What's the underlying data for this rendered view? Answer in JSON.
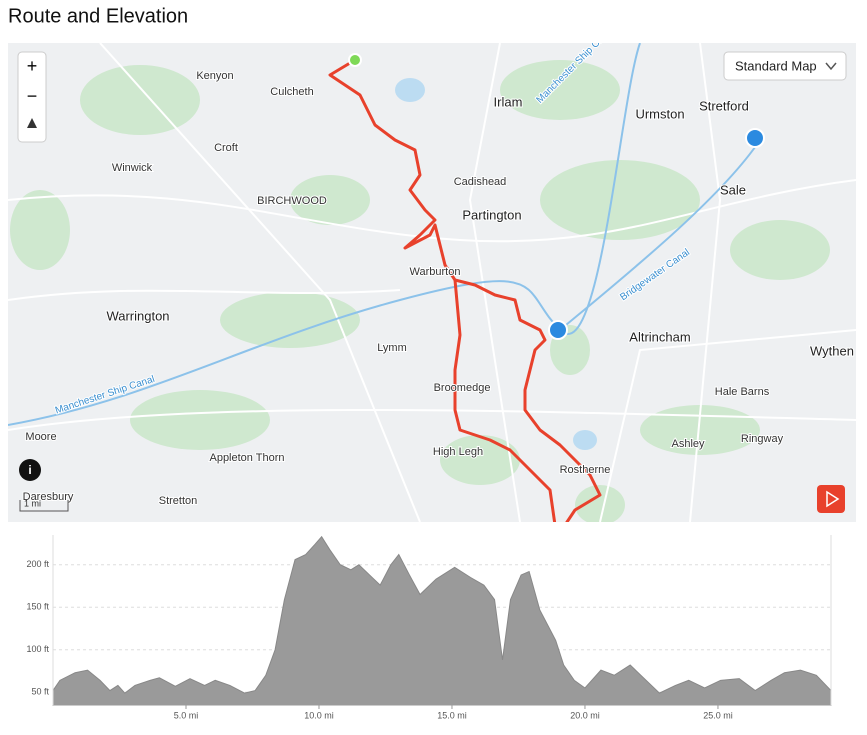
{
  "header": {
    "title": "Route and Elevation"
  },
  "map": {
    "zoom_in": "+",
    "zoom_out": "−",
    "map_style": "Standard Map",
    "scale": "1 mi",
    "labels": [
      "Kenyon",
      "Culcheth",
      "Irlam",
      "Urmston",
      "Stretford",
      "Winwick",
      "Croft",
      "Cadishead",
      "Sale",
      "BIRCHWOOD",
      "Partington",
      "Warburton",
      "Warrington",
      "Altrincham",
      "Lymm",
      "Broomedge",
      "Hale Barns",
      "Moore",
      "Ashley",
      "Ringway",
      "High Legh",
      "Rostherne",
      "Appleton Thorn",
      "Stretton",
      "Daresbury",
      "Wythen"
    ],
    "waterways": [
      "Manchester Ship Canal",
      "Manchester Ship Canal",
      "Bridgewater Canal"
    ]
  },
  "chart_data": {
    "type": "area",
    "color": "#9a9a9a",
    "x": [
      0,
      0.26,
      0.83,
      1.3,
      1.77,
      2.14,
      2.44,
      2.7,
      3.08,
      3.65,
      4.0,
      4.6,
      5.15,
      5.7,
      6.1,
      6.65,
      7.2,
      7.6,
      8.0,
      8.35,
      8.7,
      9.1,
      9.5,
      9.85,
      10.1,
      10.4,
      10.8,
      11.2,
      11.5,
      11.9,
      12.3,
      12.7,
      13.0,
      13.4,
      13.8,
      14.4,
      15.1,
      15.7,
      16.2,
      16.6,
      16.9,
      17.2,
      17.6,
      17.9,
      18.3,
      18.6,
      18.9,
      19.2,
      19.6,
      20.0,
      20.6,
      21.1,
      21.7,
      22.3,
      22.8,
      23.4,
      23.9,
      24.5,
      25.1,
      25.8,
      26.4,
      27.0,
      27.5,
      28.1,
      28.7,
      29.25
    ],
    "values": [
      52,
      64,
      73,
      76,
      64,
      52,
      58,
      49,
      58,
      64,
      67,
      57,
      66,
      58,
      64,
      58,
      49,
      52,
      70,
      100,
      159,
      206,
      212,
      224,
      233,
      218,
      200,
      194,
      200,
      188,
      176,
      200,
      212,
      188,
      165,
      183,
      197,
      185,
      176,
      159,
      88,
      159,
      188,
      192,
      147,
      129,
      111,
      82,
      64,
      55,
      76,
      70,
      82,
      64,
      49,
      58,
      64,
      55,
      64,
      66,
      52,
      64,
      73,
      76,
      70,
      52
    ],
    "xlim": [
      0,
      29.25
    ],
    "ylim": [
      35,
      235
    ],
    "xticks": [
      {
        "value": 5,
        "label": "5.0 mi"
      },
      {
        "value": 10,
        "label": "10.0 mi"
      },
      {
        "value": 15,
        "label": "15.0 mi"
      },
      {
        "value": 20,
        "label": "20.0 mi"
      },
      {
        "value": 25,
        "label": "25.0 mi"
      }
    ],
    "yticks": [
      {
        "value": 50,
        "label": "50 ft"
      },
      {
        "value": 100,
        "label": "100 ft"
      },
      {
        "value": 150,
        "label": "150 ft"
      },
      {
        "value": 200,
        "label": "200 ft"
      }
    ],
    "grid": true
  }
}
